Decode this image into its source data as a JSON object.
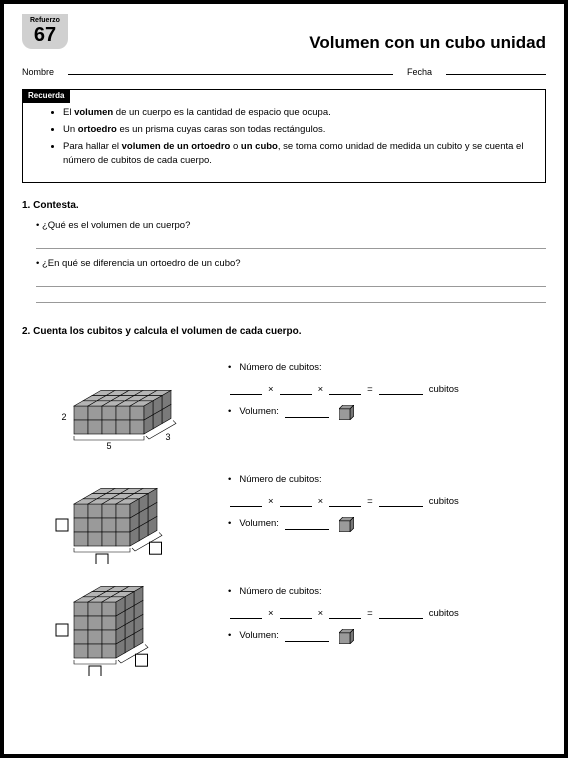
{
  "header": {
    "ref": "Refuerzo",
    "num": "67",
    "title": "Volumen con un cubo unidad"
  },
  "fields": {
    "name": "Nombre",
    "date": "Fecha"
  },
  "recall": {
    "label": "Recuerda",
    "items": [
      "El <b>volumen</b> de un cuerpo es la cantidad de espacio que ocupa.",
      "Un <b>ortoedro</b> es un prisma cuyas caras son todas rectángulos.",
      "Para hallar el <b>volumen de un ortoedro</b> o <b>un cubo</b>, se toma como unidad de medida un cubito y se cuenta el número de cubitos de cada cuerpo."
    ]
  },
  "q1": {
    "title": "1. Contesta.",
    "a": "¿Qué es el volumen de un cuerpo?",
    "b": "¿En qué se diferencia un ortoedro de un cubo?"
  },
  "q2": {
    "title": "2. Cuenta los cubitos y calcula el volumen de cada cuerpo."
  },
  "labels": {
    "num": "Número de cubitos:",
    "vol": "Volumen:",
    "cub": "cubitos"
  },
  "colors": {
    "fill": "#9a9a9a",
    "stroke": "#000"
  },
  "prisms": [
    {
      "w": 5,
      "d": 3,
      "h": 2,
      "show": [
        true,
        true,
        true
      ]
    },
    {
      "w": 4,
      "d": 3,
      "h": 3,
      "show": [
        false,
        false,
        false
      ]
    },
    {
      "w": 3,
      "d": 3,
      "h": 4,
      "show": [
        false,
        false,
        false
      ]
    }
  ]
}
